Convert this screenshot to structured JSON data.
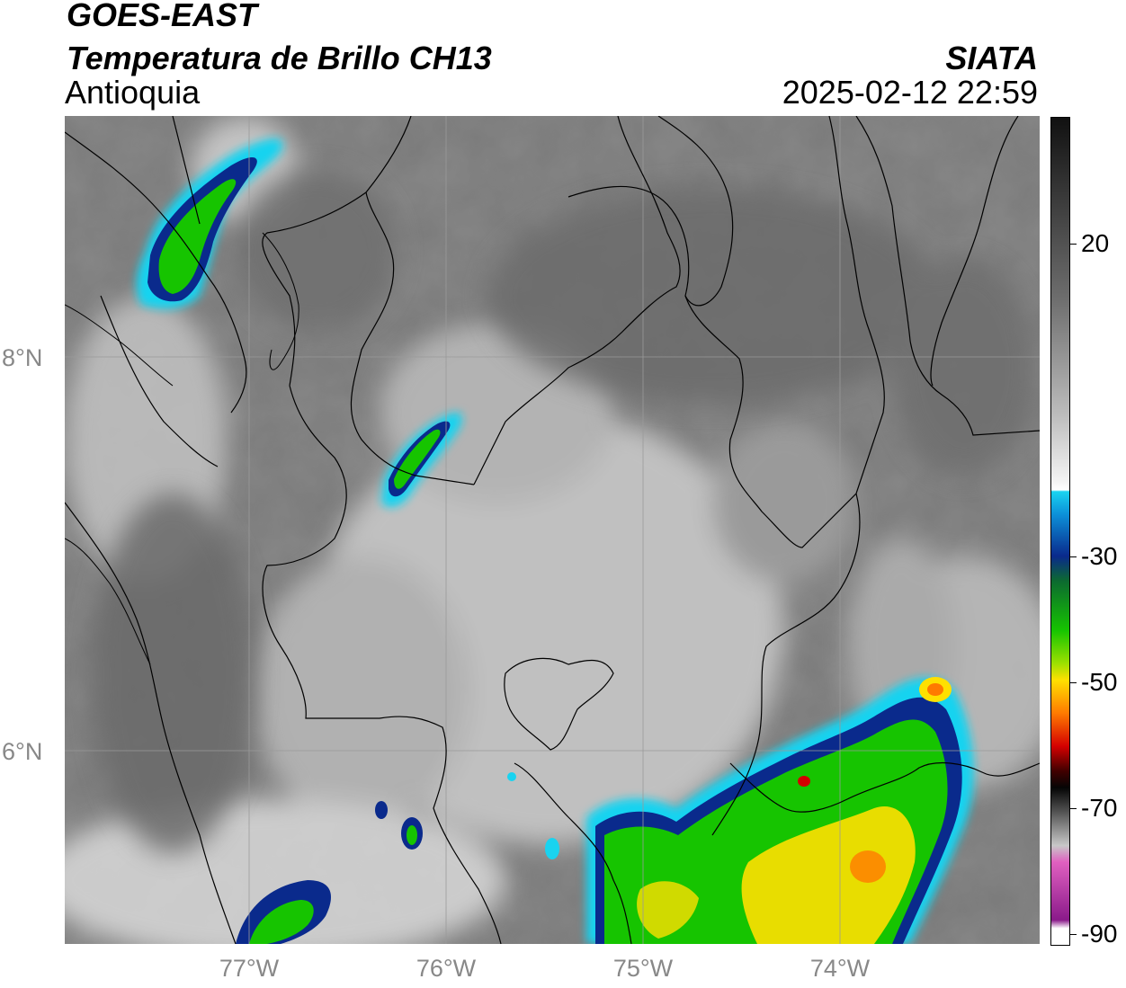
{
  "header": {
    "satellite": "GOES-EAST",
    "product": "Temperatura de Brillo CH13",
    "region": "Antioquia",
    "org": "SIATA",
    "datetime": "2025-02-12 22:59"
  },
  "axes": {
    "lat_labels": [
      "8°N",
      "6°N"
    ],
    "lon_labels": [
      "77°W",
      "76°W",
      "75°W",
      "74°W"
    ]
  },
  "colorbar": {
    "ticks": [
      "20",
      "-30",
      "-50",
      "-70",
      "-90"
    ],
    "colors": {
      "warm_top": "#111111",
      "warm_mid": "#6e6e6e",
      "cold_white": "#f4f4f4",
      "cyan": "#19d3f0",
      "navy": "#0a2a8c",
      "green": "#16c400",
      "yellow": "#ffe000",
      "orange": "#ff7a00",
      "red": "#d40000",
      "black": "#050505",
      "pink": "#e060c0",
      "purple": "#8a1a8a"
    }
  },
  "map_colors": {
    "ocean_gray": "#777777",
    "land_gray": "#888888",
    "cloud_light": "#c8c8c8",
    "border": "#000000",
    "grid": "#aaaaaa"
  }
}
